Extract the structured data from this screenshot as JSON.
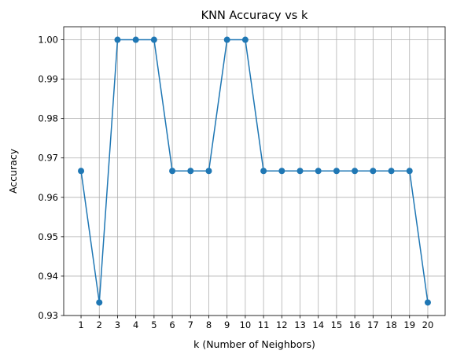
{
  "chart_data": {
    "type": "line",
    "title": "KNN Accuracy vs k",
    "xlabel": "k (Number of Neighbors)",
    "ylabel": "Accuracy",
    "x": [
      1,
      2,
      3,
      4,
      5,
      6,
      7,
      8,
      9,
      10,
      11,
      12,
      13,
      14,
      15,
      16,
      17,
      18,
      19,
      20
    ],
    "y": [
      0.9667,
      0.9333,
      1.0,
      1.0,
      1.0,
      0.9667,
      0.9667,
      0.9667,
      1.0,
      1.0,
      0.9667,
      0.9667,
      0.9667,
      0.9667,
      0.9667,
      0.9667,
      0.9667,
      0.9667,
      0.9667,
      0.9333
    ],
    "xlim": [
      0.05,
      20.95
    ],
    "ylim": [
      0.93,
      1.0033
    ],
    "yticks": [
      0.93,
      0.94,
      0.95,
      0.96,
      0.97,
      0.98,
      0.99,
      1.0
    ],
    "ytick_labels": [
      "0.93",
      "0.94",
      "0.95",
      "0.96",
      "0.97",
      "0.98",
      "0.99",
      "1.00"
    ],
    "xtick_labels": [
      "1",
      "2",
      "3",
      "4",
      "5",
      "6",
      "7",
      "8",
      "9",
      "10",
      "11",
      "12",
      "13",
      "14",
      "15",
      "16",
      "17",
      "18",
      "19",
      "20"
    ],
    "grid": true,
    "marker": "circle",
    "color": "#1f77b4"
  }
}
